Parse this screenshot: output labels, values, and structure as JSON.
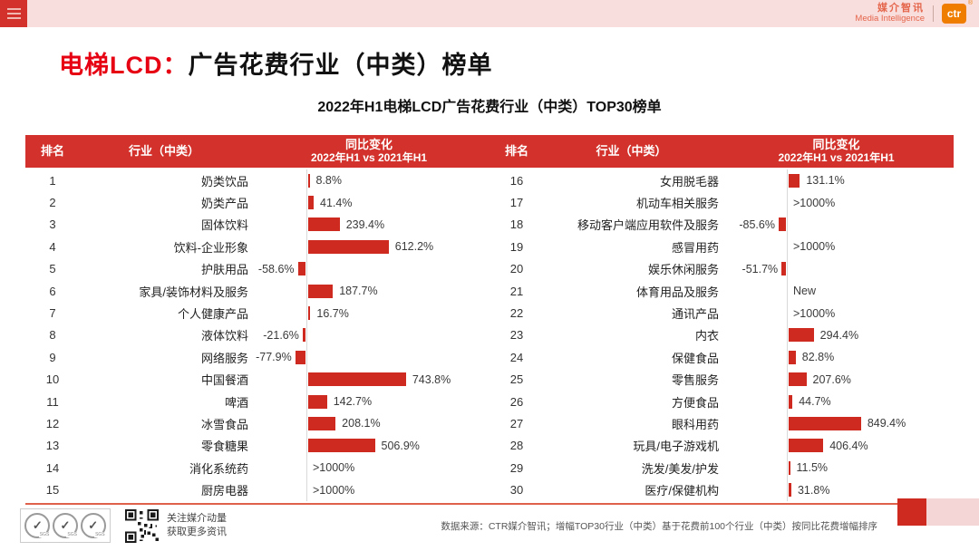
{
  "topbar": {
    "brand_cn": "媒介智讯",
    "brand_en": "Media Intelligence",
    "logo_text": "ctr",
    "registered_mark": "®"
  },
  "page_title": {
    "highlight": "电梯LCD：",
    "rest": "广告花费行业（中类）榜单"
  },
  "chart_title": "2022年H1电梯LCD广告花费行业（中类）TOP30榜单",
  "table_header": {
    "rank": "排名",
    "industry": "行业（中类）",
    "change_line1": "同比变化",
    "change_line2": "2022年H1 vs 2021年H1"
  },
  "chart_data": {
    "type": "bar",
    "orientation": "horizontal",
    "value_unit": "%",
    "title": "2022年H1电梯LCD广告花费行业（中类）TOP30榜单",
    "bar_color": "#cf2a1f",
    "note": "values are YoY ad-spend change 2022H1 vs 2021H1; '>1000%' and 'New' shown as text without bars; negative bars drawn left of zero axis",
    "left_table_rows": [
      {
        "rank": 1,
        "industry": "奶类饮品",
        "label": "8.8%",
        "value": 8.8
      },
      {
        "rank": 2,
        "industry": "奶类产品",
        "label": "41.4%",
        "value": 41.4
      },
      {
        "rank": 3,
        "industry": "固体饮料",
        "label": "239.4%",
        "value": 239.4
      },
      {
        "rank": 4,
        "industry": "饮料-企业形象",
        "label": "612.2%",
        "value": 612.2
      },
      {
        "rank": 5,
        "industry": "护肤用品",
        "label": "-58.6%",
        "value": -58.6
      },
      {
        "rank": 6,
        "industry": "家具/装饰材料及服务",
        "label": "187.7%",
        "value": 187.7
      },
      {
        "rank": 7,
        "industry": "个人健康产品",
        "label": "16.7%",
        "value": 16.7
      },
      {
        "rank": 8,
        "industry": "液体饮料",
        "label": "-21.6%",
        "value": -21.6
      },
      {
        "rank": 9,
        "industry": "网络服务",
        "label": "-77.9%",
        "value": -77.9
      },
      {
        "rank": 10,
        "industry": "中国餐酒",
        "label": "743.8%",
        "value": 743.8
      },
      {
        "rank": 11,
        "industry": "啤酒",
        "label": "142.7%",
        "value": 142.7
      },
      {
        "rank": 12,
        "industry": "冰雪食品",
        "label": "208.1%",
        "value": 208.1
      },
      {
        "rank": 13,
        "industry": "零食糖果",
        "label": "506.9%",
        "value": 506.9
      },
      {
        "rank": 14,
        "industry": "消化系统药",
        "label": ">1000%",
        "value": null
      },
      {
        "rank": 15,
        "industry": "厨房电器",
        "label": ">1000%",
        "value": null
      }
    ],
    "right_table_rows": [
      {
        "rank": 16,
        "industry": "女用脱毛器",
        "label": "131.1%",
        "value": 131.1
      },
      {
        "rank": 17,
        "industry": "机动车相关服务",
        "label": ">1000%",
        "value": null
      },
      {
        "rank": 18,
        "industry": "移动客户端应用软件及服务",
        "label": "-85.6%",
        "value": -85.6
      },
      {
        "rank": 19,
        "industry": "感冒用药",
        "label": ">1000%",
        "value": null
      },
      {
        "rank": 20,
        "industry": "娱乐休闲服务",
        "label": "-51.7%",
        "value": -51.7
      },
      {
        "rank": 21,
        "industry": "体育用品及服务",
        "label": "New",
        "value": null
      },
      {
        "rank": 22,
        "industry": "通讯产品",
        "label": ">1000%",
        "value": null
      },
      {
        "rank": 23,
        "industry": "内衣",
        "label": "294.4%",
        "value": 294.4
      },
      {
        "rank": 24,
        "industry": "保健食品",
        "label": "82.8%",
        "value": 82.8
      },
      {
        "rank": 25,
        "industry": "零售服务",
        "label": "207.6%",
        "value": 207.6
      },
      {
        "rank": 26,
        "industry": "方便食品",
        "label": "44.7%",
        "value": 44.7
      },
      {
        "rank": 27,
        "industry": "眼科用药",
        "label": "849.4%",
        "value": 849.4
      },
      {
        "rank": 28,
        "industry": "玩具/电子游戏机",
        "label": "406.4%",
        "value": 406.4
      },
      {
        "rank": 29,
        "industry": "洗发/美发/护发",
        "label": "11.5%",
        "value": 11.5
      },
      {
        "rank": 30,
        "industry": "医疗/保健机构",
        "label": "31.8%",
        "value": 31.8
      }
    ]
  },
  "footer": {
    "sgs_label": "SGS",
    "qr_caption_line1": "关注媒介动量",
    "qr_caption_line2": "获取更多资讯",
    "source_note": "数据来源：CTR媒介智讯；增幅TOP30行业（中类）基于花费前100个行业（中类）按同比花费增幅排序"
  },
  "colors": {
    "accent_red": "#d2322b",
    "bar_red": "#cf2a1f",
    "title_red": "#e60012",
    "topbar_pink": "#f9dede",
    "footer_pink": "#f5d6d6",
    "logo_orange": "#ee7d00"
  }
}
